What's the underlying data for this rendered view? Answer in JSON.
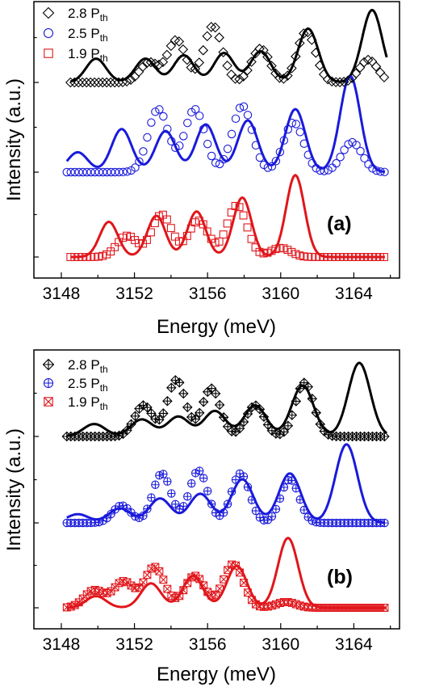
{
  "chart_data": [
    {
      "type": "line",
      "panel_label": "(a)",
      "xlabel": "Energy (meV)",
      "ylabel": "Intensity (a.u.)",
      "xlim": [
        3146.5,
        3166.5
      ],
      "x_ticks": [
        3148,
        3152,
        3156,
        3160,
        3164
      ],
      "y_ticks_visible": false,
      "legend_position": "top-left",
      "series": [
        {
          "name": "2.8 P",
          "name_sub": "th",
          "color": "#000000",
          "marker": "diamond",
          "offset": 2,
          "fit_peaks": [
            [
              3149.9,
              0.42
            ],
            [
              3152.6,
              0.42
            ],
            [
              3154.7,
              0.48
            ],
            [
              3156.9,
              0.52
            ],
            [
              3158.9,
              0.55
            ],
            [
              3161.5,
              0.95
            ],
            [
              3165.0,
              1.28
            ]
          ],
          "fit_width": 0.55,
          "marker_x_range": [
            3148.5,
            3165.8
          ],
          "marker_step": 0.22,
          "marker_peaks": [
            [
              3152.8,
              0.35
            ],
            [
              3154.3,
              0.75
            ],
            [
              3156.3,
              1.0
            ],
            [
              3158.9,
              0.6
            ],
            [
              3161.4,
              0.9
            ],
            [
              3164.8,
              0.4
            ]
          ],
          "marker_width": 0.5
        },
        {
          "name": "2.5 P",
          "name_sub": "th",
          "color": "#1a1adb",
          "marker": "circle",
          "offset": 1,
          "fit_peaks": [
            [
              3148.9,
              0.3
            ],
            [
              3151.3,
              0.65
            ],
            [
              3153.7,
              0.62
            ],
            [
              3155.9,
              0.72
            ],
            [
              3158.2,
              0.78
            ],
            [
              3160.8,
              0.95
            ],
            [
              3163.8,
              1.45
            ]
          ],
          "fit_width": 0.55,
          "marker_x_range": [
            3148.3,
            3165.7
          ],
          "marker_step": 0.22,
          "marker_peaks": [
            [
              3153.3,
              0.95
            ],
            [
              3155.3,
              0.95
            ],
            [
              3157.9,
              1.0
            ],
            [
              3160.7,
              0.75
            ],
            [
              3163.9,
              0.45
            ]
          ],
          "marker_width": 0.55
        },
        {
          "name": "1.9 P",
          "name_sub": "th",
          "color": "#e0161b",
          "marker": "square",
          "offset": 0,
          "fit_peaks": [
            [
              3150.6,
              0.58
            ],
            [
              3153.2,
              0.68
            ],
            [
              3155.4,
              0.75
            ],
            [
              3157.9,
              0.98
            ],
            [
              3160.8,
              1.35
            ]
          ],
          "fit_width": 0.5,
          "marker_x_range": [
            3148.5,
            3165.7
          ],
          "marker_step": 0.22,
          "marker_peaks": [
            [
              3151.6,
              0.35
            ],
            [
              3153.5,
              0.7
            ],
            [
              3155.5,
              0.6
            ],
            [
              3157.6,
              0.85
            ],
            [
              3160.0,
              0.15
            ]
          ],
          "marker_width": 0.55
        }
      ]
    },
    {
      "type": "line",
      "panel_label": "(b)",
      "xlabel": "Energy (meV)",
      "ylabel": "Intensity (a.u.)",
      "xlim": [
        3146.5,
        3166.5
      ],
      "x_ticks": [
        3148,
        3152,
        3156,
        3160,
        3164
      ],
      "y_ticks_visible": false,
      "legend_position": "top-left",
      "series": [
        {
          "name": "2.8 P",
          "name_sub": "th",
          "color": "#000000",
          "marker": "diamond-plus",
          "offset": 2,
          "fit_peaks": [
            [
              3149.8,
              0.22
            ],
            [
              3152.4,
              0.3
            ],
            [
              3154.4,
              0.35
            ],
            [
              3156.4,
              0.45
            ],
            [
              3158.6,
              0.55
            ],
            [
              3161.2,
              0.9
            ],
            [
              3164.3,
              1.3
            ]
          ],
          "fit_width": 0.6,
          "marker_x_range": [
            3148.3,
            3165.8
          ],
          "marker_step": 0.22,
          "marker_peaks": [
            [
              3152.5,
              0.55
            ],
            [
              3154.3,
              1.0
            ],
            [
              3156.2,
              0.85
            ],
            [
              3158.6,
              0.55
            ],
            [
              3161.3,
              0.95
            ]
          ],
          "marker_width": 0.5
        },
        {
          "name": "2.5 P",
          "name_sub": "th",
          "color": "#1a1adb",
          "marker": "circle-plus",
          "offset": 1,
          "fit_peaks": [
            [
              3148.9,
              0.15
            ],
            [
              3151.2,
              0.25
            ],
            [
              3153.4,
              0.42
            ],
            [
              3155.6,
              0.5
            ],
            [
              3157.9,
              0.75
            ],
            [
              3160.5,
              0.85
            ],
            [
              3163.6,
              1.35
            ]
          ],
          "fit_width": 0.6,
          "marker_x_range": [
            3148.3,
            3165.7
          ],
          "marker_step": 0.22,
          "marker_peaks": [
            [
              3151.3,
              0.3
            ],
            [
              3153.5,
              0.85
            ],
            [
              3155.5,
              0.9
            ],
            [
              3157.8,
              0.85
            ],
            [
              3160.5,
              0.75
            ]
          ],
          "marker_width": 0.5
        },
        {
          "name": "1.9 P",
          "name_sub": "th",
          "color": "#e0161b",
          "marker": "square-x",
          "offset": 0,
          "fit_peaks": [
            [
              3149.9,
              0.2
            ],
            [
              3152.9,
              0.42
            ],
            [
              3155.2,
              0.55
            ],
            [
              3157.6,
              0.72
            ],
            [
              3160.4,
              1.2
            ]
          ],
          "fit_width": 0.55,
          "marker_x_range": [
            3148.3,
            3165.8
          ],
          "marker_step": 0.22,
          "marker_peaks": [
            [
              3149.8,
              0.3
            ],
            [
              3151.4,
              0.45
            ],
            [
              3153.1,
              0.7
            ],
            [
              3155.3,
              0.55
            ],
            [
              3157.4,
              0.75
            ],
            [
              3160.3,
              0.1
            ]
          ],
          "marker_width": 0.55
        }
      ]
    }
  ]
}
